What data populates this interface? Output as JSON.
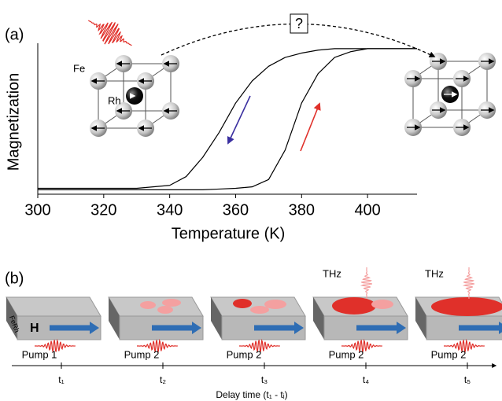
{
  "panel_a": {
    "label": "(a)",
    "question": "?",
    "fe_label": "Fe",
    "rh_label": "Rh"
  },
  "chart_data": {
    "type": "line",
    "x_label": "Temperature (K)",
    "y_label": "Magnetization",
    "x": [
      300,
      310,
      320,
      330,
      340,
      345,
      350,
      355,
      360,
      365,
      370,
      375,
      380,
      385,
      390,
      395,
      400,
      415
    ],
    "series": [
      {
        "color": "#000000",
        "values": [
          0.03,
          0.03,
          0.03,
          0.03,
          0.03,
          0.03,
          0.03,
          0.035,
          0.04,
          0.05,
          0.1,
          0.3,
          0.62,
          0.82,
          0.93,
          0.97,
          0.99,
          0.99
        ]
      },
      {
        "color": "#000000",
        "values": [
          0.04,
          0.04,
          0.04,
          0.04,
          0.06,
          0.12,
          0.25,
          0.42,
          0.62,
          0.77,
          0.87,
          0.93,
          0.96,
          0.98,
          0.99,
          0.99,
          0.99,
          0.99
        ]
      }
    ],
    "xlim": [
      300,
      415
    ],
    "ylim": [
      0,
      1
    ],
    "xticks": [
      300,
      320,
      340,
      360,
      380,
      400
    ]
  },
  "panel_b": {
    "label": "(b)",
    "sample_label": "FeRh",
    "field_label": "H",
    "probe_labels": [
      "THz",
      "THz"
    ],
    "pumps": [
      "Pump 1",
      "Pump 2",
      "Pump 2",
      "Pump 2",
      "Pump 2"
    ],
    "times": [
      "t₁",
      "t₂",
      "t₃",
      "t₄",
      "t₅"
    ],
    "axis_label": "Delay time (t₁ - tᵢ)"
  }
}
